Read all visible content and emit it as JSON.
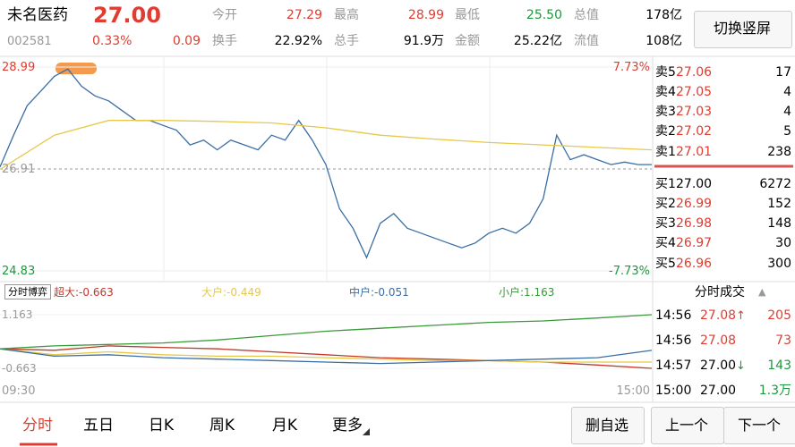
{
  "header": {
    "name": "未名医药",
    "price": "27.00",
    "code": "002581",
    "change_pct": "0.33%",
    "change": "0.09",
    "stats": [
      {
        "label": "今开",
        "value": "27.29"
      },
      {
        "label": "最高",
        "value": "28.99"
      },
      {
        "label": "最低",
        "value": "25.50"
      },
      {
        "label": "总值",
        "value": "178亿"
      },
      {
        "label": "换手",
        "value": "22.92%"
      },
      {
        "label": "总手",
        "value": "91.9万"
      },
      {
        "label": "金额",
        "value": "25.22亿"
      },
      {
        "label": "流值",
        "value": "108亿"
      }
    ],
    "button": "切换竖屏"
  },
  "chart": {
    "type": "line",
    "ylim": [
      24.83,
      28.99
    ],
    "yticks": [
      28.99,
      26.91,
      24.83
    ],
    "pct_labels": [
      "7.73%",
      "-7.73%"
    ],
    "series": [
      {
        "color": "#3a6ea5",
        "values": [
          26.95,
          27.6,
          28.2,
          28.5,
          28.8,
          28.95,
          28.6,
          28.4,
          28.3,
          28.1,
          27.9,
          27.9,
          27.8,
          27.7,
          27.4,
          27.5,
          27.3,
          27.5,
          27.4,
          27.3,
          27.6,
          27.5,
          27.9,
          27.5,
          27.0,
          26.1,
          25.7,
          25.1,
          25.8,
          26.0,
          25.7,
          25.6,
          25.5,
          25.4,
          25.3,
          25.4,
          25.6,
          25.7,
          25.6,
          25.8,
          26.3,
          27.6,
          27.1,
          27.2,
          27.1,
          27.0,
          27.05,
          27.0,
          27.0
        ]
      },
      {
        "color": "#e6c84a",
        "values": [
          26.9,
          27.6,
          27.9,
          27.9,
          27.88,
          27.85,
          27.75,
          27.6,
          27.52,
          27.45,
          27.4,
          27.35,
          27.3
        ]
      }
    ]
  },
  "order_book": {
    "asks": [
      {
        "label": "卖5",
        "price": "27.06",
        "vol": "17"
      },
      {
        "label": "卖4",
        "price": "27.05",
        "vol": "4"
      },
      {
        "label": "卖3",
        "price": "27.03",
        "vol": "4"
      },
      {
        "label": "卖2",
        "price": "27.02",
        "vol": "5"
      },
      {
        "label": "卖1",
        "price": "27.01",
        "vol": "238"
      }
    ],
    "bids": [
      {
        "label": "买1",
        "price": "27.00",
        "vol": "6272"
      },
      {
        "label": "买2",
        "price": "26.99",
        "vol": "152"
      },
      {
        "label": "买3",
        "price": "26.98",
        "vol": "148"
      },
      {
        "label": "买4",
        "price": "26.97",
        "vol": "30"
      },
      {
        "label": "买5",
        "price": "26.96",
        "vol": "300"
      }
    ]
  },
  "flow": {
    "type": "line",
    "title": "分时博弈",
    "ylim": [
      -1.759,
      1.528
    ],
    "yticks": [
      1.163,
      -0.663
    ],
    "x_labels": [
      "09:30",
      "15:00"
    ],
    "series": [
      {
        "name": "超大:-0.663",
        "color": "#c0392b",
        "values": [
          0,
          -0.05,
          0.1,
          0.05,
          0.0,
          -0.1,
          -0.2,
          -0.3,
          -0.35,
          -0.4,
          -0.45,
          -0.55,
          -0.663
        ]
      },
      {
        "name": "大户:-0.449",
        "color": "#e6c84a",
        "values": [
          0,
          -0.2,
          -0.1,
          -0.2,
          -0.25,
          -0.25,
          -0.3,
          -0.35,
          -0.4,
          -0.4,
          -0.45,
          -0.45,
          -0.449
        ]
      },
      {
        "name": "中户:-0.051",
        "color": "#3a6ea5",
        "values": [
          0,
          -0.25,
          -0.2,
          -0.3,
          -0.35,
          -0.4,
          -0.45,
          -0.5,
          -0.45,
          -0.4,
          -0.35,
          -0.3,
          -0.051
        ]
      },
      {
        "name": "小户:1.163",
        "color": "#3a9a3a",
        "values": [
          0,
          0.1,
          0.15,
          0.2,
          0.3,
          0.45,
          0.6,
          0.7,
          0.8,
          0.9,
          0.95,
          1.05,
          1.163
        ]
      }
    ]
  },
  "trades": {
    "title": "分时成交",
    "rows": [
      {
        "time": "14:56",
        "price": "27.08",
        "dir": "↑",
        "vol": "205"
      },
      {
        "time": "14:56",
        "price": "27.08",
        "dir": "",
        "vol": "73"
      },
      {
        "time": "14:57",
        "price": "27.00",
        "dir": "↓",
        "vol": "143"
      },
      {
        "time": "15:00",
        "price": "27.00",
        "dir": "",
        "vol": "1.3万"
      }
    ]
  },
  "tabs": [
    "分时",
    "五日",
    "日K",
    "周K",
    "月K",
    "更多"
  ],
  "buttons": [
    "删自选",
    "上一个",
    "下一个"
  ]
}
